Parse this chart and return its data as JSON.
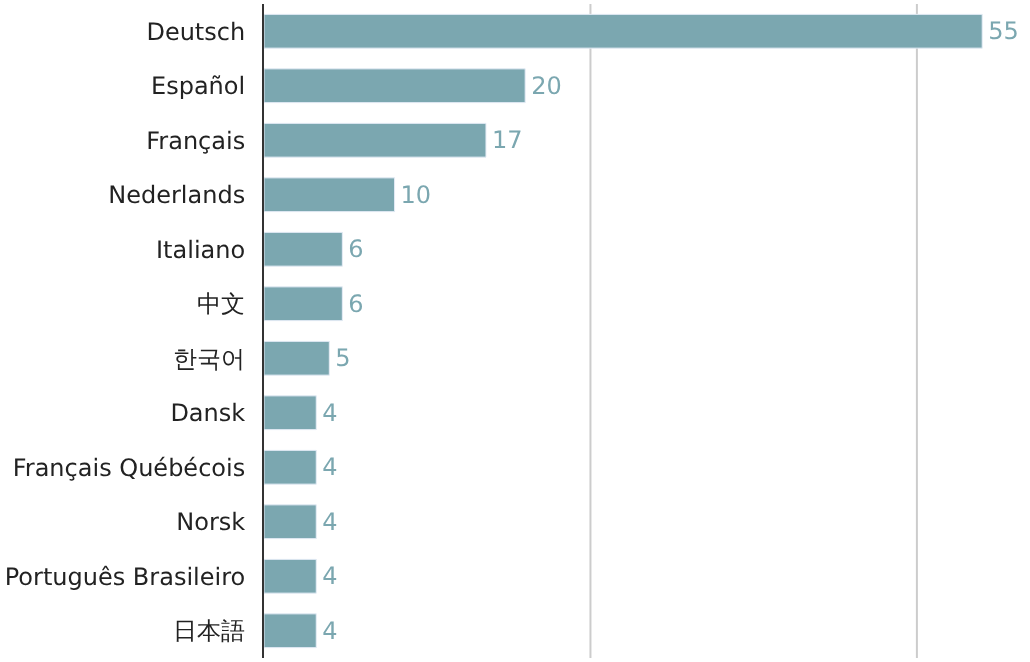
{
  "chart_data": {
    "type": "bar",
    "orientation": "horizontal",
    "categories": [
      "Deutsch",
      "Español",
      "Français",
      "Nederlands",
      "Italiano",
      "中文",
      "한국어",
      "Dansk",
      "Français Québécois",
      "Norsk",
      "Português Brasileiro",
      "日本語"
    ],
    "values": [
      55,
      20,
      17,
      10,
      6,
      6,
      5,
      4,
      4,
      4,
      4,
      4
    ],
    "color": "#7ba7b0",
    "tick_labels": "y",
    "ref_lines": [
      {
        "axis": "x",
        "value": 25,
        "color": "#cccccc"
      },
      {
        "axis": "x",
        "value": 50,
        "color": "#cccccc"
      }
    ],
    "data_labels": true,
    "legend": false
  }
}
